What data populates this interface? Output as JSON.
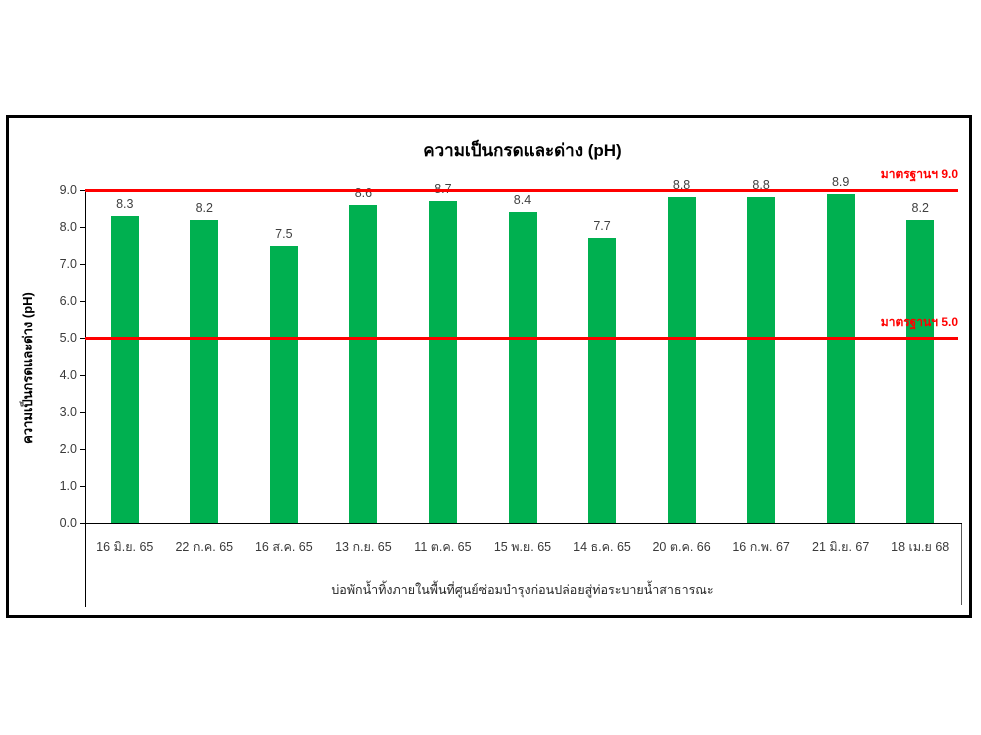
{
  "chart_data": {
    "type": "bar",
    "title": "ความเป็นกรดและด่าง (pH)",
    "xlabel": "บ่อพักน้ำทิ้งภายในพื้นที่ศูนย์ซ่อมบำรุงก่อนปล่อยสู่ท่อระบายน้ำสาธารณะ",
    "ylabel": "ความเป็นกรดและด่าง  (pH)",
    "categories": [
      "16 มิ.ย. 65",
      "22 ก.ค. 65",
      "16 ส.ค. 65",
      "13 ก.ย. 65",
      "11 ต.ค. 65",
      "15 พ.ย. 65",
      "14 ธ.ค. 65",
      "20 ต.ค. 66",
      "16 ก.พ. 67",
      "21 มิ.ย. 67",
      "18 เม.ย 68"
    ],
    "values": [
      8.3,
      8.2,
      7.5,
      8.6,
      8.7,
      8.4,
      7.7,
      8.8,
      8.8,
      8.9,
      8.2
    ],
    "value_labels": [
      "8.3",
      "8.2",
      "7.5",
      "8.6",
      "8.7",
      "8.4",
      "7.7",
      "8.8",
      "8.8",
      "8.9",
      "8.2"
    ],
    "ylim": [
      0.0,
      9.0
    ],
    "yticks": [
      "0.0",
      "1.0",
      "2.0",
      "3.0",
      "4.0",
      "5.0",
      "6.0",
      "7.0",
      "8.0",
      "9.0"
    ],
    "grid": false,
    "legend": "none",
    "bar_color": "#00B050",
    "reference_lines": [
      {
        "value": 9.0,
        "label": "มาตรฐานฯ 9.0",
        "color": "#FF0000"
      },
      {
        "value": 5.0,
        "label": "มาตรฐานฯ 5.0",
        "color": "#FF0000"
      }
    ]
  }
}
